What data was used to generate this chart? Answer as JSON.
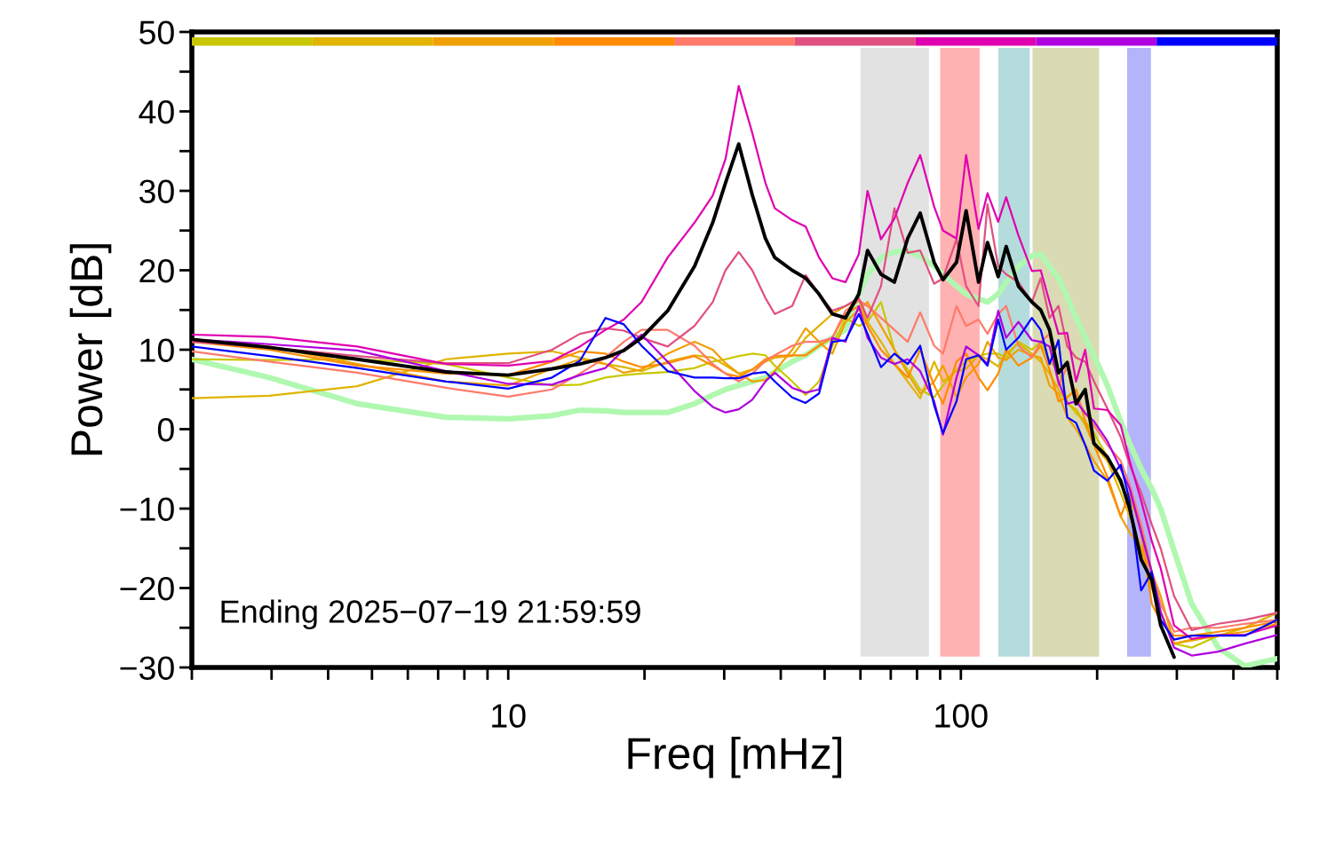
{
  "chart_data": {
    "type": "line",
    "xlabel": "Freq [mHz]",
    "ylabel": "Power [dB]",
    "annotations": [
      "Ending 2025−07−19 21:59:59"
    ],
    "log": "x",
    "grid": false,
    "marker": "none",
    "line_style": "solid",
    "xlim": [
      2,
      500
    ],
    "xticks": [
      {
        "value": 2,
        "label": null
      },
      {
        "value": 3,
        "label": null
      },
      {
        "value": 4,
        "label": null
      },
      {
        "value": 5,
        "label": null
      },
      {
        "value": 6,
        "label": null
      },
      {
        "value": 7,
        "label": null
      },
      {
        "value": 8,
        "label": null
      },
      {
        "value": 9,
        "label": null
      },
      10,
      {
        "value": 20,
        "label": null
      },
      {
        "value": 30,
        "label": null
      },
      {
        "value": 40,
        "label": null
      },
      {
        "value": 50,
        "label": null
      },
      {
        "value": 60,
        "label": null
      },
      {
        "value": 70,
        "label": null
      },
      {
        "value": 80,
        "label": null
      },
      {
        "value": 90,
        "label": null
      },
      100,
      {
        "value": 200,
        "label": null
      },
      {
        "value": 300,
        "label": null
      },
      {
        "value": 400,
        "label": null
      },
      {
        "value": 500,
        "label": null
      }
    ],
    "ylim": [
      -30,
      50
    ],
    "yticks": [
      {
        "value": -30,
        "label": "−30"
      },
      {
        "value": -25,
        "label": null
      },
      {
        "value": -20,
        "label": "−20"
      },
      {
        "value": -15,
        "label": null
      },
      {
        "value": -10,
        "label": "−10"
      },
      {
        "value": -5,
        "label": null
      },
      0,
      {
        "value": 5,
        "label": null
      },
      10,
      {
        "value": 15,
        "label": null
      },
      20,
      {
        "value": 25,
        "label": null
      },
      30,
      {
        "value": 35,
        "label": null
      },
      40,
      {
        "value": 45,
        "label": null
      },
      50
    ],
    "bands": [
      {
        "axis": "x",
        "from": 60,
        "to": 85,
        "color": "#e2e2e2"
      },
      {
        "axis": "x",
        "from": 90,
        "to": 110,
        "color": "#ffb2b2"
      },
      {
        "axis": "x",
        "from": 121,
        "to": 142,
        "color": "#b4dcdc"
      },
      {
        "axis": "x",
        "from": 144,
        "to": 202,
        "color": "#dadab4"
      },
      {
        "axis": "x",
        "from": 233,
        "to": 263,
        "color": "#b4b4fa"
      }
    ],
    "x": [
      2,
      2.96,
      4.64,
      7.29,
      10,
      12.5,
      14.4,
      16.4,
      18,
      19.7,
      22.5,
      25.8,
      28.3,
      30.2,
      32.3,
      34.6,
      37,
      38.8,
      42.4,
      45.4,
      48.6,
      52,
      55.6,
      59.5,
      62.2,
      66.6,
      71.3,
      76.3,
      81.3,
      87.3,
      91.3,
      97.8,
      102.7,
      109.4,
      114.5,
      120.9,
      125.9,
      134,
      143.5,
      150.1,
      157,
      164.3,
      171.8,
      179.7,
      188.2,
      196.8,
      210.7,
      225.5,
      236,
      250.2,
      264.1,
      276.3,
      295.8,
      323.6,
      370.4,
      424,
      500
    ],
    "series": [
      {
        "color": "#b0f8b0",
        "values": [
          8.8,
          6.5,
          3.2,
          1.5,
          1.3,
          1.7,
          2.4,
          2.3,
          2.1,
          2.1,
          2.1,
          3.2,
          4.3,
          5,
          5.5,
          6,
          6.5,
          7.2,
          8.5,
          9.3,
          10.5,
          11.5,
          12.5,
          17,
          19.5,
          21.6,
          22.3,
          22.4,
          21.8,
          20.5,
          19.5,
          18,
          17,
          16.4,
          16,
          17,
          18.5,
          20.5,
          21.8,
          22,
          20.5,
          19,
          16.6,
          14,
          11.5,
          9.3,
          5.5,
          1,
          -1.8,
          -5,
          -7.5,
          -10,
          -15.3,
          -22,
          -27.5,
          -29.8,
          -28.9
        ]
      },
      {
        "color": "#c8c800",
        "values": [
          8.8,
          8.7,
          8.8,
          8.2,
          6.5,
          5.5,
          5.6,
          6.5,
          6.8,
          7,
          7.2,
          7.7,
          8.5,
          8.8,
          9.2,
          9.5,
          9.3,
          8,
          6,
          4.3,
          6,
          10.5,
          14,
          13,
          13.5,
          16,
          10,
          7.5,
          5,
          4,
          5.5,
          7.5,
          8.5,
          9.2,
          9.5,
          9.5,
          9,
          11,
          10,
          11,
          8.5,
          7.5,
          3.5,
          2,
          1,
          -0.5,
          -3.5,
          -7,
          -9,
          -12,
          -18,
          -23,
          -27,
          -27.5,
          -26,
          -25,
          -23.1
        ]
      },
      {
        "color": "#e0b400",
        "values": [
          3.9,
          4.2,
          5.4,
          8.8,
          9.5,
          9.8,
          9,
          8.2,
          7.8,
          7.3,
          8.5,
          9.3,
          9,
          8,
          7,
          7.5,
          8.5,
          9,
          9.2,
          11.5,
          13,
          14.5,
          15.5,
          16.2,
          13.5,
          11,
          8.2,
          6,
          3.9,
          8.5,
          6,
          7.3,
          7.6,
          9.3,
          8.8,
          7.9,
          9.5,
          10.8,
          9.5,
          8.5,
          7,
          5,
          3.2,
          2.5,
          0.5,
          -2,
          -4,
          -8,
          -11,
          -15,
          -20,
          -23,
          -27,
          -26.6,
          -26,
          -25,
          -23.1
        ]
      },
      {
        "color": "#f0a000",
        "values": [
          11.2,
          10.4,
          8.2,
          6,
          5.5,
          7.6,
          8.8,
          8.2,
          7.1,
          7.5,
          9.5,
          11,
          10,
          8.3,
          7,
          6,
          6.2,
          7.3,
          10,
          12.7,
          11,
          9.5,
          13.5,
          15,
          16,
          13,
          10,
          7,
          4.5,
          6,
          8,
          4,
          6.5,
          8.2,
          11,
          9,
          8.7,
          10,
          9.3,
          9,
          5.5,
          4.5,
          1.5,
          0,
          -2,
          -4,
          -6.5,
          -11,
          -13,
          -15,
          -18,
          -21,
          -27,
          -26.5,
          -26,
          -25.5,
          -24.5
        ]
      },
      {
        "color": "#ff8c00",
        "values": [
          11,
          10,
          8,
          7,
          6.8,
          8.5,
          9.8,
          9.5,
          8.5,
          7.8,
          8.3,
          9.2,
          8,
          7,
          6.6,
          7.5,
          8.8,
          9.2,
          9.3,
          9.3,
          10.5,
          11.5,
          14.5,
          15.5,
          13,
          10,
          8.2,
          6.5,
          10,
          5.5,
          3.2,
          8.5,
          9.5,
          6.5,
          4.9,
          7,
          10,
          8,
          9,
          10.5,
          7.5,
          3.5,
          4,
          5,
          1,
          -2,
          -6,
          -11,
          -8,
          -13,
          -22,
          -24.2,
          -26,
          -26,
          -25.5,
          -25,
          -24.2
        ]
      },
      {
        "color": "#ff7a6a",
        "values": [
          9.8,
          8.5,
          7.1,
          5.2,
          4.1,
          5,
          7,
          9,
          11,
          12.5,
          12.5,
          10.5,
          8.2,
          7,
          6,
          7,
          8.6,
          9.3,
          10.5,
          11,
          11,
          11.5,
          14.9,
          16.2,
          15.5,
          14,
          12.5,
          11,
          14.7,
          10.5,
          9.5,
          15.5,
          13,
          13.8,
          12,
          14.5,
          15.5,
          10.5,
          9,
          11,
          12,
          5.5,
          7.9,
          4,
          2,
          0.5,
          -2,
          -4,
          -7,
          -12,
          -18,
          -22,
          -25.5,
          -25,
          -25,
          -24.5,
          -24
        ]
      },
      {
        "color": "#e05080",
        "values": [
          11,
          10.3,
          9.2,
          8.3,
          8.3,
          10,
          12,
          12.7,
          12.4,
          11.5,
          10.4,
          13,
          16,
          20,
          22.3,
          20,
          16.5,
          14.5,
          15.5,
          19.4,
          17,
          14.9,
          15.5,
          16.5,
          14,
          18,
          27.8,
          22.2,
          22.5,
          18.3,
          19,
          23.9,
          18,
          15.5,
          28.3,
          20.5,
          19.5,
          18.5,
          16,
          19,
          14,
          15.5,
          10.4,
          9,
          8.5,
          6,
          2.6,
          -1,
          -4.5,
          -8,
          -12,
          -15,
          -21,
          -25.3,
          -24.5,
          -24,
          -23.1
        ]
      },
      {
        "color": "#e000b0",
        "values": [
          11.9,
          11.6,
          10.4,
          8.2,
          8,
          8.6,
          10.4,
          12.5,
          13.8,
          16,
          21.6,
          26,
          29.4,
          34,
          43.2,
          37.3,
          31,
          27.8,
          26.3,
          25.5,
          21.6,
          19,
          18.5,
          22,
          30,
          23.9,
          26.5,
          31,
          34.5,
          28,
          25,
          24,
          34.5,
          25.2,
          29.7,
          26.1,
          29.2,
          24.4,
          19.9,
          20,
          16,
          12,
          12.1,
          6,
          10,
          2.6,
          2.4,
          0.5,
          -4,
          -9,
          -14.1,
          -17.5,
          -24.7,
          -26.4,
          -25.9,
          -25.9,
          -24.7
        ]
      },
      {
        "color": "#b000e0",
        "values": [
          11.3,
          10.7,
          9.9,
          7.3,
          5.7,
          5.6,
          6.8,
          7.7,
          10,
          11.9,
          8.5,
          4.8,
          2.8,
          2.1,
          2.5,
          3.7,
          6,
          7.1,
          5.2,
          4.6,
          5,
          11.5,
          11,
          15.5,
          11.5,
          9,
          8.2,
          8.8,
          7.3,
          3.5,
          -0.7,
          6.5,
          10.4,
          9.3,
          8.2,
          14.9,
          11.5,
          13.5,
          11.2,
          11,
          10.4,
          6,
          3.2,
          3.5,
          2,
          1,
          -1.5,
          -5,
          -7.5,
          -13,
          -18,
          -23,
          -27.5,
          -28.5,
          -28,
          -27,
          -25.9
        ]
      },
      {
        "color": "#0000ff",
        "values": [
          10.4,
          9.2,
          7.7,
          6,
          5.1,
          6.5,
          8.6,
          14,
          13.2,
          10.5,
          7.3,
          6.5,
          6.5,
          6.4,
          6.4,
          7,
          7.2,
          6,
          4,
          3.3,
          4.5,
          11,
          11.2,
          14.5,
          12,
          7.8,
          9.5,
          8.2,
          10.5,
          3,
          -0.5,
          3.5,
          8.8,
          9.3,
          8,
          13.8,
          10,
          11.5,
          14,
          12.5,
          8.2,
          11.2,
          1.5,
          0.8,
          -2,
          -5.2,
          -6.5,
          -4.5,
          -9,
          -20.3,
          -18,
          -24,
          -26.5,
          -26,
          -26,
          -26,
          -24
        ]
      },
      {
        "color": "#000000",
        "values": [
          11.3,
          10.3,
          8.8,
          7.2,
          6.8,
          7.6,
          8.2,
          9,
          9.9,
          11.5,
          14.9,
          20.5,
          26,
          31,
          35.9,
          29.5,
          24,
          21.6,
          20,
          19,
          17,
          14.5,
          14,
          17,
          22.5,
          19.5,
          18.5,
          24,
          27.2,
          21,
          18.8,
          21,
          27.5,
          18.5,
          23.5,
          19.2,
          23,
          18,
          16,
          15,
          12.5,
          7.1,
          8.4,
          3.2,
          5,
          -1.8,
          -3.5,
          -6.5,
          -10,
          -16.4,
          -19,
          -24.7,
          -28.7,
          null,
          null,
          null,
          null
        ]
      }
    ]
  }
}
